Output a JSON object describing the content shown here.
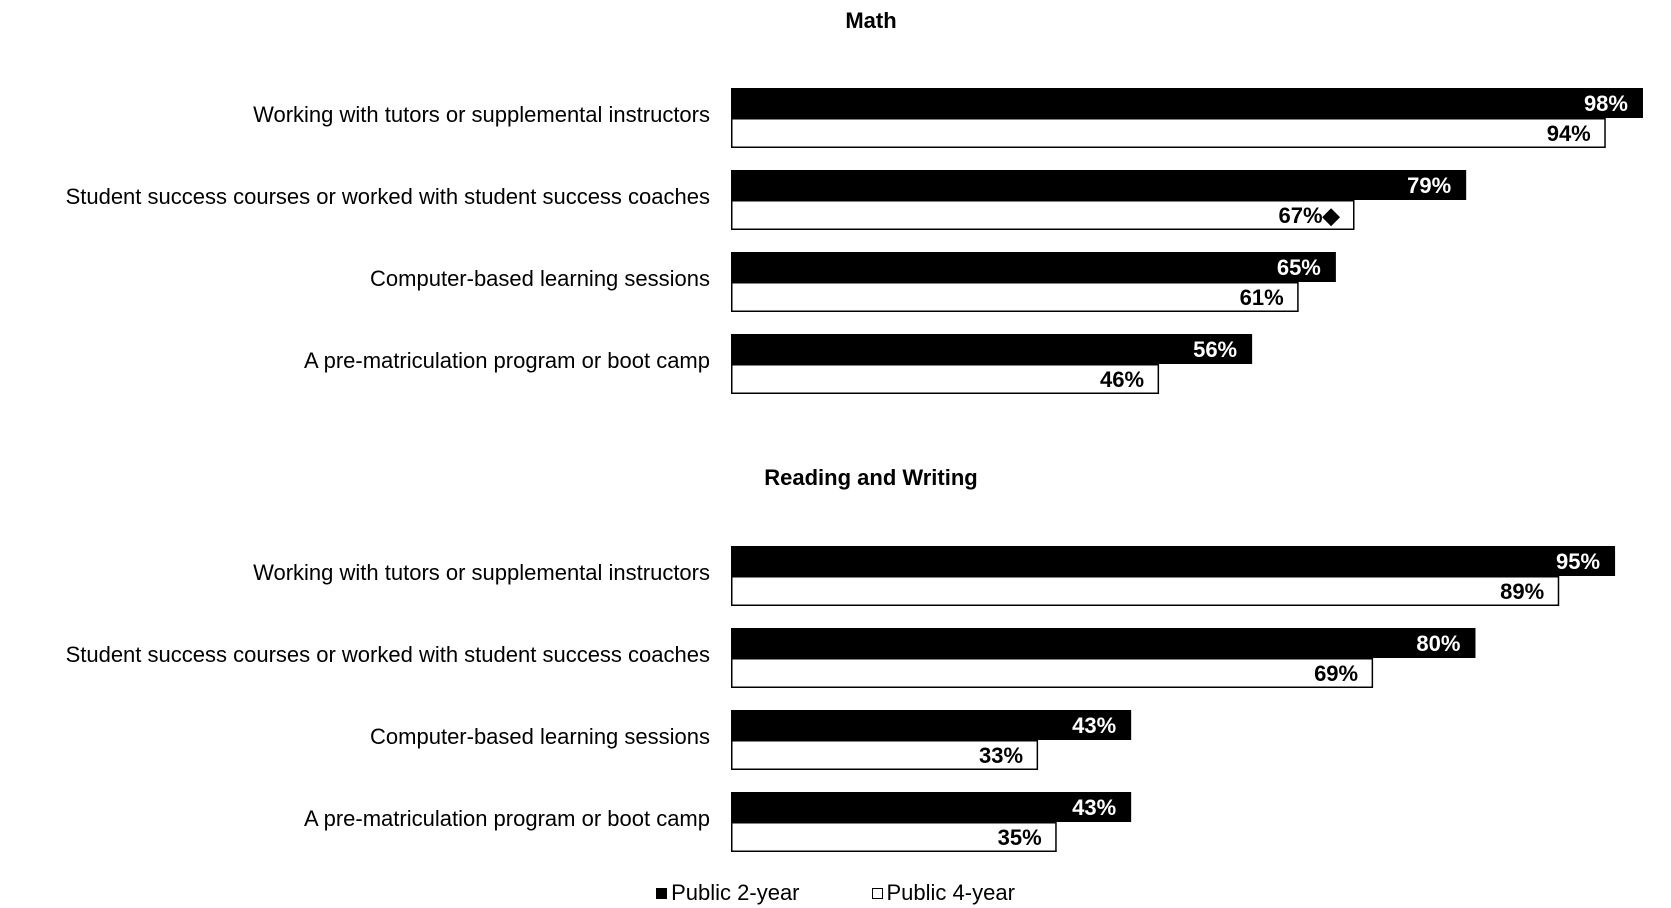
{
  "chart_data": [
    {
      "type": "bar",
      "title": "Math",
      "categories": [
        "Working with tutors or supplemental instructors",
        "Student success courses or worked with student success coaches",
        "Computer-based learning sessions",
        "A pre-matriculation program or boot camp"
      ],
      "series": [
        {
          "name": "Public 2-year",
          "values": [
            98,
            79,
            65,
            56
          ],
          "labels": [
            "98%",
            "79%",
            "65%",
            "56%"
          ]
        },
        {
          "name": "Public 4-year",
          "values": [
            94,
            67,
            61,
            46
          ],
          "labels": [
            "94%",
            "67%◆",
            "61%",
            "46%"
          ]
        }
      ],
      "xlim": [
        0,
        100
      ],
      "orientation": "horizontal",
      "grid": false
    },
    {
      "type": "bar",
      "title": "Reading and Writing",
      "categories": [
        "Working with tutors or supplemental instructors",
        "Student success courses or worked with student success coaches",
        "Computer-based learning sessions",
        "A pre-matriculation program or boot camp"
      ],
      "series": [
        {
          "name": "Public 2-year",
          "values": [
            95,
            80,
            43,
            43
          ],
          "labels": [
            "95%",
            "80%",
            "43%",
            "43%"
          ]
        },
        {
          "name": "Public 4-year",
          "values": [
            89,
            69,
            33,
            35
          ],
          "labels": [
            "89%",
            "69%",
            "33%",
            "35%"
          ]
        }
      ],
      "xlim": [
        0,
        100
      ],
      "orientation": "horizontal",
      "grid": false
    }
  ],
  "legend": {
    "position": "bottom",
    "items": [
      {
        "label": "Public 2-year",
        "color": "#000000"
      },
      {
        "label": "Public 4-year",
        "color": "#ffffff"
      }
    ]
  }
}
